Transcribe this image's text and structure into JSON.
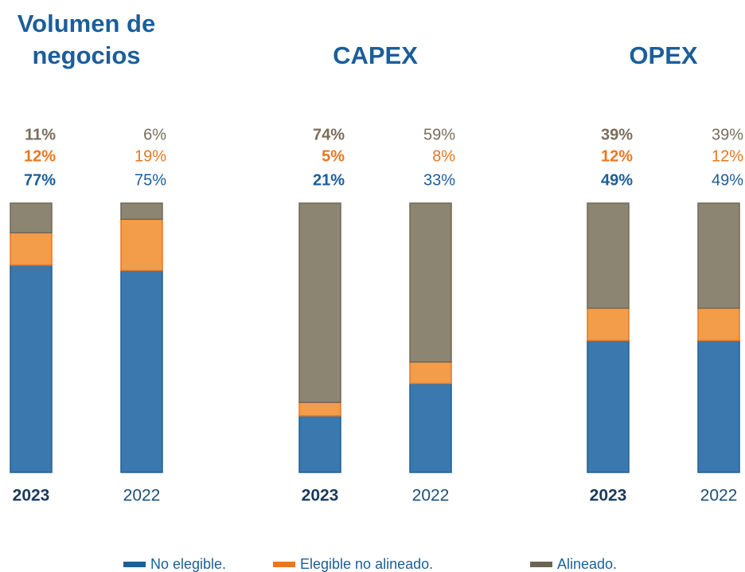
{
  "chart_data": {
    "type": "bar",
    "stacked": true,
    "ylim": [
      0,
      100
    ],
    "groups": [
      {
        "title": "Volumen de negocios",
        "categories": [
          "2023",
          "2022"
        ]
      },
      {
        "title": "CAPEX",
        "categories": [
          "2023",
          "2022"
        ]
      },
      {
        "title": "OPEX",
        "categories": [
          "2023",
          "2022"
        ]
      }
    ],
    "series": [
      {
        "name": "No elegible.",
        "color": "#3a78ad",
        "label_color": "#1b5e9b",
        "values": [
          77,
          75,
          21,
          33,
          49,
          49
        ],
        "value_labels": [
          "77%",
          "75%",
          "21%",
          "33%",
          "49%",
          "49%"
        ]
      },
      {
        "name": "Elegible no alineado.",
        "color": "#f39c4a",
        "label_color": "#e87722",
        "values": [
          12,
          19,
          5,
          8,
          12,
          12
        ],
        "value_labels": [
          "12%",
          "19%",
          "5%",
          "8%",
          "12%",
          "12%"
        ]
      },
      {
        "name": "Alineado.",
        "color": "#8c8572",
        "label_color": "#7a6e5a",
        "values": [
          11,
          6,
          74,
          59,
          39,
          39
        ],
        "value_labels": [
          "11%",
          "6%",
          "74%",
          "59%",
          "39%",
          "39%"
        ]
      }
    ]
  }
}
